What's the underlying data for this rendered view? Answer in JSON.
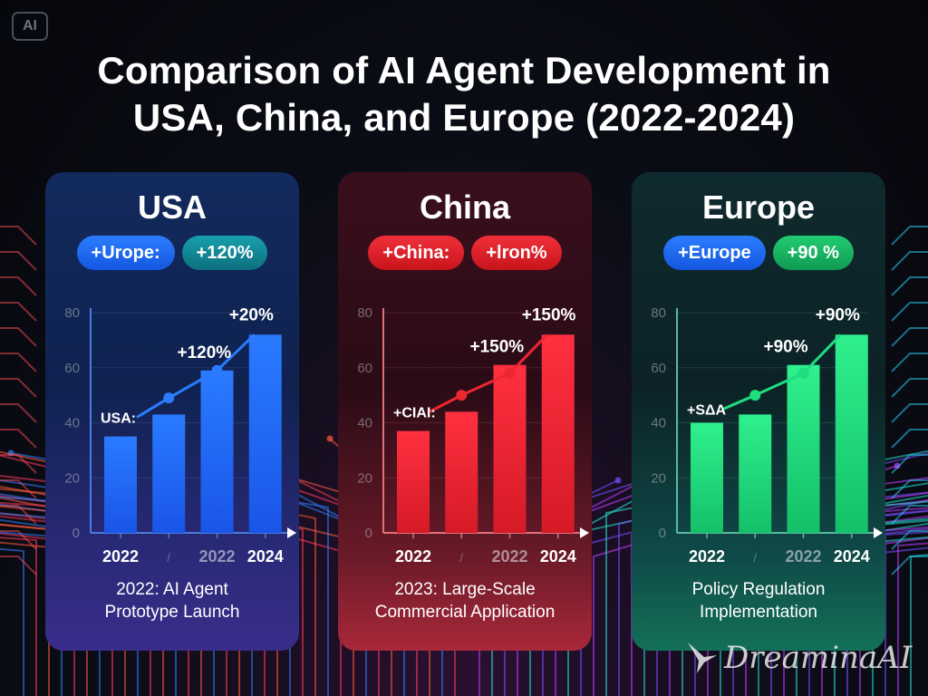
{
  "badge": {
    "label": "AI"
  },
  "title": {
    "line1": "Comparison of AI Agent Development in",
    "line2": "USA, China, and Europe (2022-2024)"
  },
  "watermark": {
    "text": "DreaminaAI",
    "icon": "star-swoosh-icon"
  },
  "colors": {
    "usa_bar": "#1f6dff",
    "china_bar": "#ee2630",
    "europe_bar": "#1fdd7e",
    "usa_pill_1": "#1a66f5",
    "usa_pill_2": "#118a98",
    "china_pill": "#e01b24",
    "europe_pill_1": "#1a66f5",
    "europe_pill_2": "#14b764"
  },
  "panels": [
    {
      "id": "usa",
      "title": "USA",
      "pills": [
        "+Urope:",
        "+120%"
      ],
      "caption_lines": [
        "2022: AI Agent",
        "Prototype Launch"
      ]
    },
    {
      "id": "china",
      "title": "China",
      "pills": [
        "+China:",
        "+lron%"
      ],
      "caption_lines": [
        "2023: Large-Scale",
        "Commercial Application"
      ]
    },
    {
      "id": "europe",
      "title": "Europe",
      "pills": [
        "+Europe",
        "+90 %"
      ],
      "caption_lines": [
        "Policy Regulation",
        "Implementation"
      ]
    }
  ],
  "chart_data": [
    {
      "type": "bar",
      "title": "USA",
      "categories": [
        "2022",
        "",
        "2022",
        "2024"
      ],
      "x_tick_labels": [
        "2022",
        "/",
        "2022",
        "2024"
      ],
      "values": [
        35,
        43,
        59,
        72
      ],
      "trend_line": [
        42,
        49,
        59,
        72
      ],
      "annotations": [
        {
          "text": "USA:",
          "at_index": 0
        },
        {
          "text": "+120%",
          "at_index": 2
        },
        {
          "text": "+20%",
          "at_index": 3
        }
      ],
      "yticks": [
        0,
        20,
        40,
        60,
        80
      ],
      "ylim": [
        0,
        80
      ],
      "xlabel": "",
      "ylabel": "",
      "grid": true
    },
    {
      "type": "bar",
      "title": "China",
      "categories": [
        "2022",
        "",
        "2022",
        "2024"
      ],
      "x_tick_labels": [
        "2022",
        "/",
        "2022",
        "2024"
      ],
      "values": [
        37,
        44,
        61,
        72
      ],
      "trend_line": [
        44,
        50,
        58,
        72
      ],
      "annotations": [
        {
          "text": "+CIAI:",
          "at_index": 0
        },
        {
          "text": "+150%",
          "at_index": 2
        },
        {
          "text": "+150%",
          "at_index": 3
        }
      ],
      "yticks": [
        0,
        20,
        40,
        60,
        80
      ],
      "ylim": [
        0,
        80
      ],
      "xlabel": "",
      "ylabel": "",
      "grid": true
    },
    {
      "type": "bar",
      "title": "Europe",
      "categories": [
        "2022",
        "",
        "2022",
        "2024"
      ],
      "x_tick_labels": [
        "2022",
        "/",
        "2022",
        "2024"
      ],
      "values": [
        40,
        43,
        61,
        72
      ],
      "trend_line": [
        45,
        50,
        58,
        72
      ],
      "annotations": [
        {
          "text": "+SΔA",
          "at_index": 0
        },
        {
          "text": "+90%",
          "at_index": 2
        },
        {
          "text": "+90%",
          "at_index": 3
        }
      ],
      "yticks": [
        0,
        20,
        40,
        60,
        80
      ],
      "ylim": [
        0,
        80
      ],
      "xlabel": "",
      "ylabel": "",
      "grid": true
    }
  ]
}
